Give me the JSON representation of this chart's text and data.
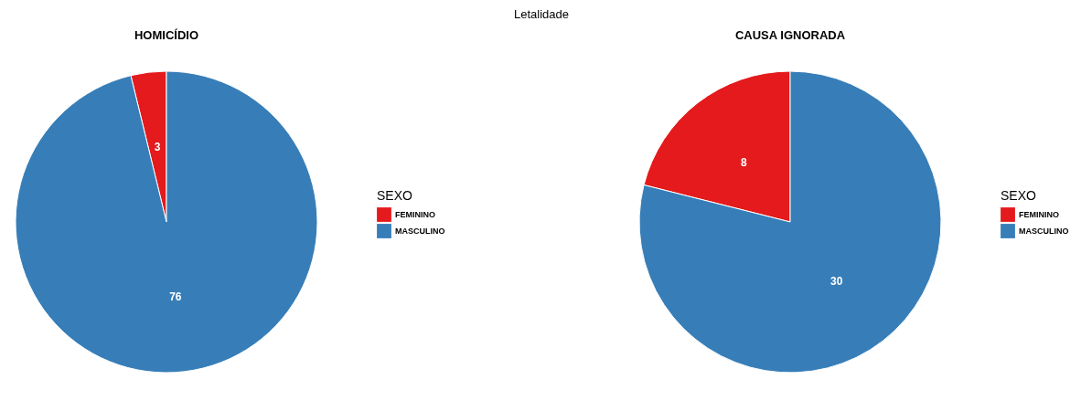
{
  "chart_data": [
    {
      "type": "pie",
      "title": "HOMICÍDIO",
      "annotations": [
        "Letalidade"
      ],
      "categories": [
        "FEMININO",
        "MASCULINO"
      ],
      "values": [
        3,
        76
      ],
      "colors": [
        "#e41a1c",
        "#377eb8"
      ],
      "legend_title": "SEXO",
      "legend": "right",
      "data_labels": true
    },
    {
      "type": "pie",
      "title": "CAUSA IGNORADA",
      "categories": [
        "FEMININO",
        "MASCULINO"
      ],
      "values": [
        8,
        30
      ],
      "colors": [
        "#e41a1c",
        "#377eb8"
      ],
      "legend_title": "SEXO",
      "legend": "right",
      "data_labels": true
    }
  ]
}
